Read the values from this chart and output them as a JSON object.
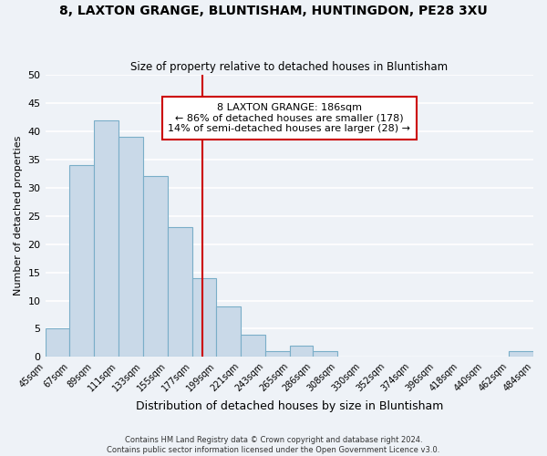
{
  "title": "8, LAXTON GRANGE, BLUNTISHAM, HUNTINGDON, PE28 3XU",
  "subtitle": "Size of property relative to detached houses in Bluntisham",
  "xlabel": "Distribution of detached houses by size in Bluntisham",
  "ylabel": "Number of detached properties",
  "bar_edges": [
    45,
    67,
    89,
    111,
    133,
    155,
    177,
    199,
    221,
    243,
    265,
    286,
    308,
    330,
    352,
    374,
    396,
    418,
    440,
    462,
    484
  ],
  "bar_heights": [
    5,
    34,
    42,
    39,
    32,
    23,
    14,
    9,
    4,
    1,
    2,
    1,
    0,
    0,
    0,
    0,
    0,
    0,
    0,
    1
  ],
  "bar_color": "#c9d9e8",
  "bar_edgecolor": "#7aaec8",
  "tick_labels": [
    "45sqm",
    "67sqm",
    "89sqm",
    "111sqm",
    "133sqm",
    "155sqm",
    "177sqm",
    "199sqm",
    "221sqm",
    "243sqm",
    "265sqm",
    "286sqm",
    "308sqm",
    "330sqm",
    "352sqm",
    "374sqm",
    "396sqm",
    "418sqm",
    "440sqm",
    "462sqm",
    "484sqm"
  ],
  "ylim": [
    0,
    50
  ],
  "yticks": [
    0,
    5,
    10,
    15,
    20,
    25,
    30,
    35,
    40,
    45,
    50
  ],
  "vline_x": 186,
  "vline_color": "#cc0000",
  "annotation_text": "8 LAXTON GRANGE: 186sqm\n← 86% of detached houses are smaller (178)\n14% of semi-detached houses are larger (28) →",
  "bg_color": "#eef2f7",
  "grid_color": "#ffffff",
  "footer_text": "Contains HM Land Registry data © Crown copyright and database right 2024.\nContains public sector information licensed under the Open Government Licence v3.0."
}
